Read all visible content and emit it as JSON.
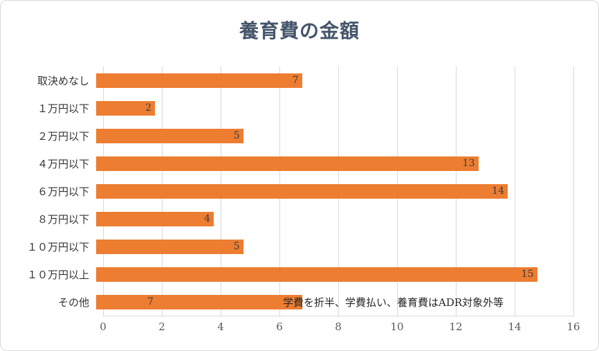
{
  "chart_data": {
    "type": "bar",
    "orientation": "horizontal",
    "title": "養育費の金額",
    "categories": [
      "取決めなし",
      "１万円以下",
      "２万円以下",
      "４万円以下",
      "６万円以下",
      "８万円以下",
      "１０万円以下",
      "１０万円以上",
      "その他"
    ],
    "values": [
      7,
      2,
      5,
      13,
      14,
      4,
      5,
      15,
      7
    ],
    "xlim": [
      0,
      16
    ],
    "xticks": [
      0,
      2,
      4,
      6,
      8,
      10,
      12,
      14,
      16
    ],
    "annotation": "学費を折半、学費払い、養育費はADR対象外等",
    "grid": true,
    "legend": false,
    "colors": {
      "bar": "#ED7D31",
      "gridline": "#D9D9D9",
      "title": "#44546A",
      "tick_label": "#595959",
      "category_label": "#333333",
      "value_label": "#3B3B3B",
      "annotation": "#262626"
    }
  }
}
